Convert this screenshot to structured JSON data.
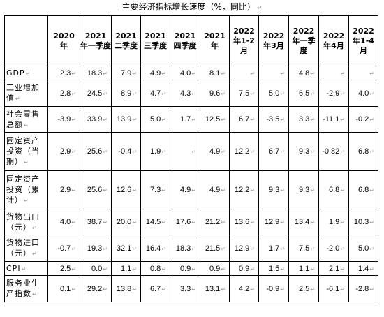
{
  "title": "主要经济指标增长速度（%，同比）",
  "mark": "↵",
  "headers": [
    {
      "year": "",
      "sub": ""
    },
    {
      "year": "2020",
      "sub": "年"
    },
    {
      "year": "2021",
      "sub": "年一季度"
    },
    {
      "year": "2021",
      "sub": "二季度"
    },
    {
      "year": "2021",
      "sub": "三季度"
    },
    {
      "year": "2021",
      "sub": "四季度"
    },
    {
      "year": "2021",
      "sub": "年"
    },
    {
      "year": "2022",
      "sub": "年1-2月"
    },
    {
      "year": "2022",
      "sub": "年3月"
    },
    {
      "year": "2022",
      "sub": "年一季度"
    },
    {
      "year": "2022",
      "sub": "年4月"
    },
    {
      "year": "2022",
      "sub": "年1-4月"
    }
  ],
  "rows": [
    {
      "label": "GDP",
      "values": [
        "2.3",
        "18.3",
        "7.9",
        "4.9",
        "4.0",
        "8.1",
        "",
        "",
        "4.8",
        "",
        ""
      ]
    },
    {
      "label": "工业增加值",
      "values": [
        "2.8",
        "24.5",
        "8.9",
        "4.7",
        "4.3",
        "9.6",
        "7.5",
        "5.0",
        "6.5",
        "-2.9",
        "4.0"
      ]
    },
    {
      "label": "社会零售总额",
      "values": [
        "-3.9",
        "33.9",
        "13.9",
        "5.0",
        "1.7",
        "12.5",
        "6.7",
        "-3.5",
        "3.3",
        "-11.1",
        "-0.2"
      ]
    },
    {
      "label": "固定资产投资（当期）",
      "values": [
        "2.9",
        "25.6",
        "-0.4",
        "1.9",
        "",
        "4.9",
        "12.2",
        "6.7",
        "9.3",
        "-0.82",
        "6.8"
      ]
    },
    {
      "label": "固定资产投资（累计）",
      "values": [
        "2.9",
        "25.6",
        "12.6",
        "7.3",
        "4.9",
        "4.9",
        "12.2",
        "9.3",
        "9.3",
        "6.8",
        "6.8"
      ]
    },
    {
      "label": "货物出口（元）",
      "values": [
        "4.0",
        "38.7",
        "20.0",
        "14.5",
        "17.6",
        "21.2",
        "13.6",
        "12.9",
        "13.4",
        "1.9",
        "10.3"
      ]
    },
    {
      "label": "货物进口（元）",
      "values": [
        "-0.7",
        "19.3",
        "32.1",
        "16.4",
        "18.3",
        "21.5",
        "12.9",
        "1.7",
        "7.5",
        "-2.0",
        "5.0"
      ]
    },
    {
      "label": "CPI",
      "values": [
        "2.5",
        "0.0",
        "1.1",
        "0.8",
        "0.9",
        "0.9",
        "0.9",
        "1.5",
        "1.1",
        "2.1",
        "1.4"
      ]
    },
    {
      "label": "服务业生产指数",
      "values": [
        "0.1",
        "29.2",
        "13.8",
        "6.7",
        "3.3",
        "13.1",
        "4.2",
        "-0.9",
        "2.5",
        "-6.1",
        "-2.8"
      ]
    }
  ]
}
